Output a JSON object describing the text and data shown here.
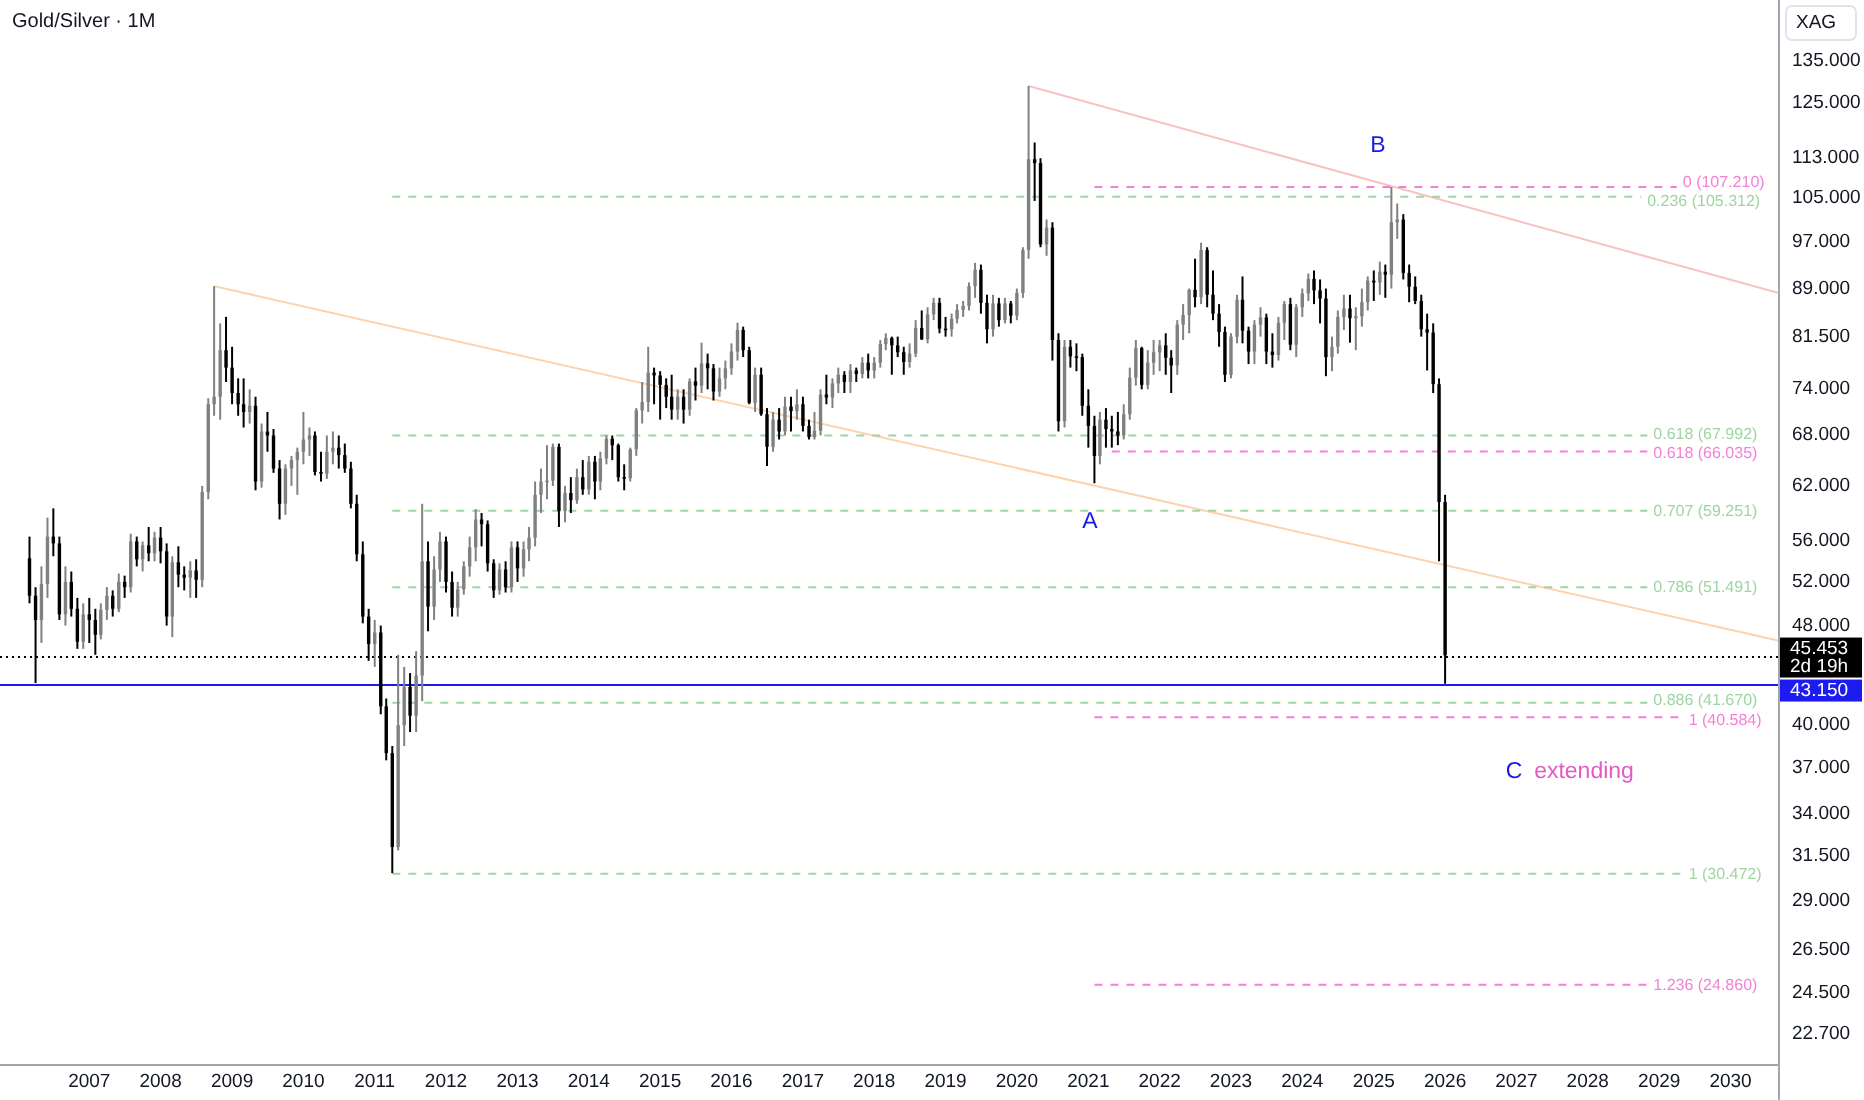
{
  "chart_data": {
    "type": "candlestick",
    "title": "Gold/Silver · 1M",
    "ylabel": "XAG",
    "log": true,
    "xlim": [
      "2005-10",
      "2030-09"
    ],
    "ylim": [
      21.5,
      151
    ],
    "xticks": [
      "2007",
      "2008",
      "2009",
      "2010",
      "2011",
      "2012",
      "2013",
      "2014",
      "2015",
      "2016",
      "2017",
      "2018",
      "2019",
      "2020",
      "2021",
      "2022",
      "2023",
      "2024",
      "2025",
      "2026",
      "2027",
      "2028",
      "2029",
      "2030"
    ],
    "yticks": [
      {
        "value": 135,
        "label": "135.000"
      },
      {
        "value": 125,
        "label": "125.000"
      },
      {
        "value": 113,
        "label": "113.000"
      },
      {
        "value": 105,
        "label": "105.000"
      },
      {
        "value": 97,
        "label": "97.000"
      },
      {
        "value": 89,
        "label": "89.000"
      },
      {
        "value": 81.5,
        "label": "81.500"
      },
      {
        "value": 74,
        "label": "74.000"
      },
      {
        "value": 68,
        "label": "68.000"
      },
      {
        "value": 62,
        "label": "62.000"
      },
      {
        "value": 56,
        "label": "56.000"
      },
      {
        "value": 52,
        "label": "52.000"
      },
      {
        "value": 48,
        "label": "48.000"
      },
      {
        "value": 40,
        "label": "40.000"
      },
      {
        "value": 37,
        "label": "37.000"
      },
      {
        "value": 34,
        "label": "34.000"
      },
      {
        "value": 31.5,
        "label": "31.500"
      },
      {
        "value": 29,
        "label": "29.000"
      },
      {
        "value": 26.5,
        "label": "26.500"
      },
      {
        "value": 24.5,
        "label": "24.500"
      },
      {
        "value": 22.7,
        "label": "22.700"
      }
    ],
    "x": [
      "2006-03",
      "2006-04",
      "2006-05",
      "2006-06",
      "2006-07",
      "2006-08",
      "2006-09",
      "2006-10",
      "2006-11",
      "2006-12",
      "2007-01",
      "2007-02",
      "2007-03",
      "2007-04",
      "2007-05",
      "2007-06",
      "2007-07",
      "2007-08",
      "2007-09",
      "2007-10",
      "2007-11",
      "2007-12",
      "2008-01",
      "2008-02",
      "2008-03",
      "2008-04",
      "2008-05",
      "2008-06",
      "2008-07",
      "2008-08",
      "2008-09",
      "2008-10",
      "2008-11",
      "2008-12",
      "2009-01",
      "2009-02",
      "2009-03",
      "2009-04",
      "2009-05",
      "2009-06",
      "2009-07",
      "2009-08",
      "2009-09",
      "2009-10",
      "2009-11",
      "2009-12",
      "2010-01",
      "2010-02",
      "2010-03",
      "2010-04",
      "2010-05",
      "2010-06",
      "2010-07",
      "2010-08",
      "2010-09",
      "2010-10",
      "2010-11",
      "2010-12",
      "2011-01",
      "2011-02",
      "2011-03",
      "2011-04",
      "2011-05",
      "2011-06",
      "2011-07",
      "2011-08",
      "2011-09",
      "2011-10",
      "2011-11",
      "2011-12",
      "2012-01",
      "2012-02",
      "2012-03",
      "2012-04",
      "2012-05",
      "2012-06",
      "2012-07",
      "2012-08",
      "2012-09",
      "2012-10",
      "2012-11",
      "2012-12",
      "2013-01",
      "2013-02",
      "2013-03",
      "2013-04",
      "2013-05",
      "2013-06",
      "2013-07",
      "2013-08",
      "2013-09",
      "2013-10",
      "2013-11",
      "2013-12",
      "2014-01",
      "2014-02",
      "2014-03",
      "2014-04",
      "2014-05",
      "2014-06",
      "2014-07",
      "2014-08",
      "2014-09",
      "2014-10",
      "2014-11",
      "2014-12",
      "2015-01",
      "2015-02",
      "2015-03",
      "2015-04",
      "2015-05",
      "2015-06",
      "2015-07",
      "2015-08",
      "2015-09",
      "2015-10",
      "2015-11",
      "2015-12",
      "2016-01",
      "2016-02",
      "2016-03",
      "2016-04",
      "2016-05",
      "2016-06",
      "2016-07",
      "2016-08",
      "2016-09",
      "2016-10",
      "2016-11",
      "2016-12",
      "2017-01",
      "2017-02",
      "2017-03",
      "2017-04",
      "2017-05",
      "2017-06",
      "2017-07",
      "2017-08",
      "2017-09",
      "2017-10",
      "2017-11",
      "2017-12",
      "2018-01",
      "2018-02",
      "2018-03",
      "2018-04",
      "2018-05",
      "2018-06",
      "2018-07",
      "2018-08",
      "2018-09",
      "2018-10",
      "2018-11",
      "2018-12",
      "2019-01",
      "2019-02",
      "2019-03",
      "2019-04",
      "2019-05",
      "2019-06",
      "2019-07",
      "2019-08",
      "2019-09",
      "2019-10",
      "2019-11",
      "2019-12",
      "2020-01",
      "2020-02",
      "2020-03",
      "2020-04",
      "2020-05",
      "2020-06",
      "2020-07",
      "2020-08",
      "2020-09",
      "2020-10",
      "2020-11",
      "2020-12",
      "2021-01",
      "2021-02",
      "2021-03",
      "2021-04",
      "2021-05",
      "2021-06",
      "2021-07",
      "2021-08",
      "2021-09",
      "2021-10",
      "2021-11",
      "2021-12",
      "2022-01",
      "2022-02",
      "2022-03",
      "2022-04",
      "2022-05",
      "2022-06",
      "2022-07",
      "2022-08",
      "2022-09",
      "2022-10",
      "2022-11",
      "2022-12",
      "2023-01",
      "2023-02",
      "2023-03",
      "2023-04",
      "2023-05",
      "2023-06",
      "2023-07",
      "2023-08",
      "2023-09",
      "2023-10",
      "2023-11",
      "2023-12",
      "2024-01",
      "2024-02",
      "2024-03",
      "2024-04",
      "2024-05",
      "2024-06",
      "2024-07",
      "2024-08",
      "2024-09",
      "2024-10",
      "2024-11",
      "2024-12",
      "2025-01",
      "2025-02",
      "2025-03",
      "2025-04",
      "2025-05",
      "2025-06",
      "2025-07",
      "2025-08",
      "2025-09",
      "2025-10",
      "2025-11",
      "2025-12",
      "2026-01"
    ],
    "ohlc": [
      [
        54.3,
        56.5,
        50.0,
        50.7
      ],
      [
        50.7,
        51.5,
        43.2,
        48.5
      ],
      [
        48.5,
        53.5,
        46.5,
        51.8
      ],
      [
        51.8,
        58.5,
        50.5,
        56.5
      ],
      [
        56.5,
        59.5,
        54.5,
        55.8
      ],
      [
        55.8,
        56.5,
        48.5,
        49.0
      ],
      [
        49.0,
        53.5,
        48.0,
        52.0
      ],
      [
        52.0,
        53.0,
        48.8,
        49.5
      ],
      [
        49.5,
        50.5,
        46.0,
        46.6
      ],
      [
        46.6,
        50.0,
        46.0,
        49.0
      ],
      [
        49.0,
        50.5,
        46.5,
        48.5
      ],
      [
        48.5,
        49.5,
        45.5,
        47.2
      ],
      [
        47.2,
        50.0,
        46.8,
        49.4
      ],
      [
        49.4,
        51.5,
        48.5,
        50.7
      ],
      [
        50.7,
        51.2,
        48.8,
        49.5
      ],
      [
        49.5,
        52.8,
        49.2,
        52.0
      ],
      [
        52.0,
        52.6,
        50.5,
        51.5
      ],
      [
        51.5,
        56.8,
        51.0,
        56.0
      ],
      [
        56.0,
        56.5,
        53.5,
        54.2
      ],
      [
        54.2,
        56.0,
        53.0,
        55.6
      ],
      [
        55.6,
        57.5,
        54.0,
        54.8
      ],
      [
        54.8,
        57.0,
        54.0,
        56.4
      ],
      [
        56.4,
        57.5,
        53.8,
        55.0
      ],
      [
        55.0,
        55.8,
        48.0,
        48.8
      ],
      [
        48.8,
        54.5,
        47.0,
        53.9
      ],
      [
        53.9,
        55.5,
        51.5,
        52.7
      ],
      [
        52.7,
        53.5,
        51.2,
        52.4
      ],
      [
        52.4,
        54.0,
        50.5,
        53.1
      ],
      [
        53.1,
        54.2,
        50.5,
        52.2
      ],
      [
        52.2,
        62.0,
        51.5,
        61.3
      ],
      [
        61.3,
        72.8,
        60.5,
        72.0
      ],
      [
        72.0,
        89.4,
        70.5,
        73.0
      ],
      [
        73.0,
        83.5,
        70.0,
        79.5
      ],
      [
        79.5,
        84.5,
        75.0,
        77.0
      ],
      [
        77.0,
        80.0,
        72.0,
        73.5
      ],
      [
        73.5,
        75.5,
        70.5,
        72.0
      ],
      [
        72.0,
        75.5,
        69.0,
        71.0
      ],
      [
        71.0,
        74.0,
        69.5,
        71.8
      ],
      [
        71.8,
        73.0,
        61.5,
        62.5
      ],
      [
        62.5,
        69.5,
        61.8,
        68.5
      ],
      [
        68.5,
        71.0,
        66.0,
        68.0
      ],
      [
        68.0,
        68.8,
        63.5,
        64.0
      ],
      [
        64.0,
        65.0,
        58.3,
        60.0
      ],
      [
        60.0,
        64.5,
        58.8,
        64.0
      ],
      [
        64.0,
        65.5,
        62.0,
        65.0
      ],
      [
        65.0,
        66.5,
        61.0,
        66.0
      ],
      [
        66.0,
        71.0,
        64.5,
        67.5
      ],
      [
        67.5,
        69.0,
        65.5,
        68.0
      ],
      [
        68.0,
        68.5,
        63.2,
        63.6
      ],
      [
        63.6,
        66.0,
        62.5,
        63.4
      ],
      [
        63.4,
        68.0,
        62.8,
        66.0
      ],
      [
        66.0,
        68.5,
        64.5,
        66.5
      ],
      [
        66.5,
        68.0,
        64.0,
        65.6
      ],
      [
        65.6,
        67.0,
        63.5,
        64.0
      ],
      [
        64.0,
        64.8,
        59.5,
        60.0
      ],
      [
        60.0,
        61.0,
        54.0,
        54.7
      ],
      [
        54.7,
        56.0,
        48.2,
        48.8
      ],
      [
        48.8,
        49.5,
        45.0,
        46.4
      ],
      [
        46.4,
        48.5,
        44.5,
        47.4
      ],
      [
        47.4,
        48.0,
        40.8,
        41.4
      ],
      [
        41.4,
        42.0,
        37.5,
        38.0
      ],
      [
        38.0,
        38.5,
        30.5,
        32.0
      ],
      [
        32.0,
        45.5,
        31.8,
        40.0
      ],
      [
        40.0,
        44.5,
        38.5,
        42.9
      ],
      [
        42.9,
        44.0,
        39.5,
        40.7
      ],
      [
        40.7,
        45.8,
        39.5,
        43.8
      ],
      [
        43.8,
        60.0,
        41.8,
        54.0
      ],
      [
        54.0,
        56.0,
        47.5,
        49.7
      ],
      [
        49.7,
        54.5,
        48.5,
        53.2
      ],
      [
        53.2,
        57.0,
        52.0,
        56.0
      ],
      [
        56.0,
        56.5,
        51.0,
        52.0
      ],
      [
        52.0,
        53.0,
        48.8,
        49.6
      ],
      [
        49.6,
        52.0,
        48.8,
        51.3
      ],
      [
        51.3,
        54.0,
        50.8,
        53.5
      ],
      [
        53.5,
        56.5,
        52.5,
        55.4
      ],
      [
        55.4,
        59.4,
        54.0,
        58.3
      ],
      [
        58.3,
        59.0,
        55.5,
        57.8
      ],
      [
        57.8,
        58.2,
        53.0,
        53.8
      ],
      [
        53.8,
        54.2,
        50.5,
        51.2
      ],
      [
        51.2,
        53.8,
        50.8,
        53.2
      ],
      [
        53.2,
        54.0,
        51.0,
        51.5
      ],
      [
        51.5,
        56.0,
        51.0,
        55.4
      ],
      [
        55.4,
        56.0,
        52.0,
        53.3
      ],
      [
        53.3,
        56.0,
        52.5,
        55.2
      ],
      [
        55.2,
        57.5,
        54.0,
        56.4
      ],
      [
        56.4,
        62.5,
        55.5,
        61.0
      ],
      [
        61.0,
        64.0,
        59.0,
        62.5
      ],
      [
        62.5,
        66.8,
        60.5,
        62.6
      ],
      [
        62.6,
        67.0,
        62.0,
        66.6
      ],
      [
        66.6,
        67.0,
        57.5,
        59.2
      ],
      [
        59.2,
        62.0,
        58.0,
        61.2
      ],
      [
        61.2,
        63.0,
        59.0,
        60.4
      ],
      [
        60.4,
        64.0,
        60.0,
        63.0
      ],
      [
        63.0,
        65.0,
        61.0,
        61.6
      ],
      [
        61.6,
        65.5,
        61.0,
        64.8
      ],
      [
        64.8,
        65.5,
        60.5,
        62.5
      ],
      [
        62.5,
        66.0,
        61.5,
        65.2
      ],
      [
        65.2,
        68.0,
        64.5,
        67.6
      ],
      [
        67.6,
        68.0,
        65.0,
        66.8
      ],
      [
        66.8,
        67.0,
        62.5,
        63.0
      ],
      [
        63.0,
        64.5,
        61.5,
        62.9
      ],
      [
        62.9,
        66.5,
        62.5,
        66.3
      ],
      [
        66.3,
        71.5,
        65.5,
        71.2
      ],
      [
        71.2,
        75.0,
        69.5,
        72.3
      ],
      [
        72.3,
        80.0,
        71.0,
        76.3
      ],
      [
        76.3,
        77.0,
        72.0,
        75.9
      ],
      [
        75.9,
        76.5,
        70.0,
        74.6
      ],
      [
        74.6,
        75.5,
        71.5,
        73.0
      ],
      [
        73.0,
        76.0,
        70.0,
        71.3
      ],
      [
        71.3,
        74.0,
        70.0,
        73.0
      ],
      [
        73.0,
        74.0,
        69.5,
        71.3
      ],
      [
        71.3,
        75.5,
        70.5,
        75.1
      ],
      [
        75.1,
        77.0,
        72.5,
        74.5
      ],
      [
        74.5,
        80.6,
        73.5,
        77.6
      ],
      [
        77.6,
        79.0,
        74.0,
        76.9
      ],
      [
        76.9,
        77.5,
        72.5,
        73.7
      ],
      [
        73.7,
        77.0,
        73.0,
        75.5
      ],
      [
        75.5,
        78.0,
        74.0,
        76.9
      ],
      [
        76.9,
        80.5,
        76.0,
        79.3
      ],
      [
        79.3,
        83.6,
        78.0,
        82.5
      ],
      [
        82.5,
        83.0,
        78.5,
        79.5
      ],
      [
        79.5,
        80.0,
        72.0,
        72.2
      ],
      [
        72.2,
        77.0,
        71.0,
        76.0
      ],
      [
        76.0,
        77.0,
        70.5,
        70.7
      ],
      [
        70.7,
        71.5,
        64.3,
        66.6
      ],
      [
        66.6,
        71.0,
        66.0,
        70.0
      ],
      [
        70.0,
        71.5,
        67.5,
        68.5
      ],
      [
        68.5,
        73.0,
        68.0,
        71.7
      ],
      [
        71.7,
        73.0,
        68.5,
        71.1
      ],
      [
        71.1,
        74.0,
        70.0,
        72.0
      ],
      [
        72.0,
        73.0,
        68.5,
        69.2
      ],
      [
        69.2,
        70.0,
        67.5,
        67.8
      ],
      [
        67.8,
        71.0,
        67.5,
        68.6
      ],
      [
        68.6,
        74.0,
        68.0,
        73.3
      ],
      [
        73.3,
        76.0,
        72.0,
        72.9
      ],
      [
        72.9,
        75.5,
        71.5,
        74.8
      ],
      [
        74.8,
        77.0,
        73.5,
        76.0
      ],
      [
        76.0,
        76.5,
        73.5,
        75.0
      ],
      [
        75.0,
        77.5,
        73.5,
        76.6
      ],
      [
        76.6,
        77.0,
        75.0,
        76.1
      ],
      [
        76.1,
        78.5,
        75.5,
        77.7
      ],
      [
        77.7,
        79.0,
        75.5,
        76.6
      ],
      [
        76.6,
        78.5,
        75.5,
        77.7
      ],
      [
        77.7,
        81.0,
        77.0,
        80.4
      ],
      [
        80.4,
        82.0,
        79.5,
        81.3
      ],
      [
        81.3,
        81.5,
        76.0,
        80.2
      ],
      [
        80.2,
        81.5,
        78.5,
        79.2
      ],
      [
        79.2,
        80.0,
        76.0,
        77.8
      ],
      [
        77.8,
        80.5,
        77.0,
        79.0
      ],
      [
        79.0,
        84.0,
        78.5,
        82.8
      ],
      [
        82.8,
        85.5,
        81.0,
        81.1
      ],
      [
        81.1,
        86.0,
        80.5,
        84.9
      ],
      [
        84.9,
        87.5,
        84.0,
        86.7
      ],
      [
        86.7,
        87.5,
        82.0,
        82.7
      ],
      [
        82.7,
        84.5,
        81.5,
        82.6
      ],
      [
        82.6,
        85.0,
        81.5,
        84.2
      ],
      [
        84.2,
        86.5,
        83.5,
        85.6
      ],
      [
        85.6,
        87.0,
        84.5,
        86.2
      ],
      [
        86.2,
        90.0,
        85.5,
        89.4
      ],
      [
        89.4,
        93.3,
        87.5,
        92.1
      ],
      [
        92.1,
        93.0,
        85.0,
        86.7
      ],
      [
        86.7,
        88.0,
        80.5,
        82.6
      ],
      [
        82.6,
        88.0,
        81.5,
        86.6
      ],
      [
        86.6,
        87.5,
        83.0,
        84.0
      ],
      [
        84.0,
        87.5,
        83.5,
        86.6
      ],
      [
        86.6,
        87.0,
        83.5,
        84.7
      ],
      [
        84.7,
        89.0,
        84.0,
        88.3
      ],
      [
        88.3,
        96.0,
        87.5,
        95.5
      ],
      [
        95.5,
        129.0,
        94.0,
        112.8
      ],
      [
        112.8,
        116.3,
        104.5,
        112.0
      ],
      [
        112.0,
        113.0,
        96.0,
        96.5
      ],
      [
        96.5,
        101.0,
        94.5,
        99.5
      ],
      [
        99.5,
        100.5,
        78.0,
        81.0
      ],
      [
        81.0,
        82.0,
        68.5,
        69.8
      ],
      [
        69.8,
        81.0,
        69.0,
        80.0
      ],
      [
        80.0,
        81.0,
        77.0,
        78.6
      ],
      [
        78.6,
        80.5,
        76.5,
        78.5
      ],
      [
        78.5,
        79.0,
        70.5,
        71.8
      ],
      [
        71.8,
        74.0,
        66.5,
        69.2
      ],
      [
        69.2,
        70.5,
        62.3,
        65.5
      ],
      [
        65.5,
        71.0,
        64.5,
        70.0
      ],
      [
        70.0,
        71.5,
        66.5,
        68.8
      ],
      [
        68.8,
        70.5,
        66.5,
        68.5
      ],
      [
        68.5,
        71.0,
        66.8,
        68.0
      ],
      [
        68.0,
        72.0,
        67.5,
        70.7
      ],
      [
        70.7,
        77.0,
        70.0,
        75.6
      ],
      [
        75.6,
        81.0,
        74.5,
        79.8
      ],
      [
        79.8,
        80.0,
        74.0,
        74.6
      ],
      [
        74.6,
        79.5,
        74.0,
        77.7
      ],
      [
        77.7,
        81.0,
        76.0,
        79.2
      ],
      [
        79.2,
        81.0,
        76.5,
        80.2
      ],
      [
        80.2,
        82.0,
        76.0,
        78.4
      ],
      [
        78.4,
        79.5,
        73.5,
        77.3
      ],
      [
        77.3,
        84.0,
        76.0,
        83.3
      ],
      [
        83.3,
        86.5,
        81.0,
        84.8
      ],
      [
        84.8,
        89.0,
        82.0,
        88.8
      ],
      [
        88.8,
        94.0,
        86.0,
        87.6
      ],
      [
        87.6,
        96.8,
        86.5,
        95.5
      ],
      [
        95.5,
        96.0,
        86.0,
        88.0
      ],
      [
        88.0,
        92.0,
        84.0,
        85.0
      ],
      [
        85.0,
        86.5,
        80.0,
        82.2
      ],
      [
        82.2,
        83.0,
        75.0,
        76.0
      ],
      [
        76.0,
        82.0,
        75.5,
        81.5
      ],
      [
        81.5,
        88.0,
        80.5,
        87.2
      ],
      [
        87.2,
        91.0,
        80.5,
        82.4
      ],
      [
        82.4,
        83.0,
        77.5,
        79.3
      ],
      [
        79.3,
        84.0,
        77.5,
        83.3
      ],
      [
        83.3,
        86.0,
        81.5,
        84.4
      ],
      [
        84.4,
        85.0,
        77.5,
        79.3
      ],
      [
        79.3,
        82.0,
        77.0,
        78.8
      ],
      [
        78.8,
        84.5,
        78.0,
        83.6
      ],
      [
        83.6,
        87.0,
        81.0,
        86.5
      ],
      [
        86.5,
        87.5,
        79.5,
        80.3
      ],
      [
        80.3,
        86.5,
        78.5,
        86.0
      ],
      [
        86.0,
        89.0,
        84.5,
        88.2
      ],
      [
        88.2,
        91.5,
        87.0,
        90.6
      ],
      [
        90.6,
        92.0,
        86.5,
        88.7
      ],
      [
        88.7,
        90.5,
        83.5,
        87.4
      ],
      [
        87.4,
        89.0,
        75.8,
        78.5
      ],
      [
        78.5,
        81.5,
        76.5,
        80.0
      ],
      [
        80.0,
        85.5,
        79.0,
        84.5
      ],
      [
        84.5,
        88.0,
        82.5,
        85.8
      ],
      [
        85.8,
        88.0,
        80.6,
        84.3
      ],
      [
        84.3,
        86.0,
        79.5,
        84.6
      ],
      [
        84.6,
        89.0,
        83.0,
        86.8
      ],
      [
        86.8,
        91.0,
        85.5,
        90.3
      ],
      [
        90.3,
        92.0,
        87.0,
        90.0
      ],
      [
        90.0,
        93.5,
        88.0,
        91.8
      ],
      [
        91.8,
        93.0,
        87.5,
        91.3
      ],
      [
        91.3,
        107.2,
        89.0,
        100.5
      ],
      [
        100.5,
        104.0,
        97.5,
        101.0
      ],
      [
        101.0,
        102.0,
        90.5,
        91.6
      ],
      [
        91.6,
        93.0,
        86.8,
        89.3
      ],
      [
        89.3,
        91.0,
        86.5,
        87.0
      ],
      [
        87.0,
        88.0,
        81.5,
        82.6
      ],
      [
        82.6,
        85.0,
        76.6,
        82.1
      ],
      [
        82.1,
        83.5,
        73.5,
        74.7
      ],
      [
        74.7,
        75.5,
        54.0,
        60.2
      ],
      [
        60.2,
        61.0,
        43.15,
        45.453
      ]
    ],
    "colors": [
      "#000000",
      "#000000",
      "#808080",
      "#808080",
      "#000000",
      "#000000",
      "#808080",
      "#000000",
      "#000000",
      "#808080",
      "#000000",
      "#000000",
      "#808080",
      "#808080",
      "#000000",
      "#808080",
      "#000000",
      "#808080",
      "#000000",
      "#808080",
      "#000000",
      "#808080",
      "#000000",
      "#000000",
      "#808080",
      "#000000",
      "#000000",
      "#808080",
      "#000000",
      "#808080",
      "#808080",
      "#808080",
      "#808080",
      "#000000",
      "#000000",
      "#000000",
      "#000000",
      "#808080",
      "#000000",
      "#808080",
      "#000000",
      "#000000",
      "#000000",
      "#808080",
      "#808080",
      "#808080",
      "#808080",
      "#808080",
      "#000000",
      "#000000",
      "#808080",
      "#808080",
      "#000000",
      "#000000",
      "#000000",
      "#000000",
      "#000000",
      "#000000",
      "#808080",
      "#000000",
      "#000000",
      "#000000",
      "#808080",
      "#808080",
      "#000000",
      "#808080",
      "#808080",
      "#000000",
      "#808080",
      "#808080",
      "#000000",
      "#000000",
      "#808080",
      "#808080",
      "#808080",
      "#808080",
      "#000000",
      "#000000",
      "#000000",
      "#808080",
      "#000000",
      "#808080",
      "#000000",
      "#808080",
      "#808080",
      "#808080",
      "#808080",
      "#808080",
      "#808080",
      "#000000",
      "#808080",
      "#000000",
      "#808080",
      "#000000",
      "#808080",
      "#000000",
      "#808080",
      "#808080",
      "#000000",
      "#000000",
      "#000000",
      "#808080",
      "#808080",
      "#808080",
      "#808080",
      "#000000",
      "#000000",
      "#000000",
      "#000000",
      "#808080",
      "#000000",
      "#808080",
      "#000000",
      "#808080",
      "#000000",
      "#000000",
      "#808080",
      "#808080",
      "#808080",
      "#808080",
      "#000000",
      "#000000",
      "#808080",
      "#000000",
      "#000000",
      "#808080",
      "#000000",
      "#808080",
      "#000000",
      "#808080",
      "#000000",
      "#000000",
      "#808080",
      "#808080",
      "#000000",
      "#808080",
      "#808080",
      "#000000",
      "#808080",
      "#000000",
      "#808080",
      "#000000",
      "#808080",
      "#808080",
      "#808080",
      "#000000",
      "#000000",
      "#000000",
      "#808080",
      "#808080",
      "#000000",
      "#808080",
      "#808080",
      "#000000",
      "#000000",
      "#808080",
      "#808080",
      "#808080",
      "#808080",
      "#808080",
      "#000000",
      "#000000",
      "#808080",
      "#000000",
      "#808080",
      "#000000",
      "#808080",
      "#808080",
      "#808080",
      "#000000",
      "#000000",
      "#808080",
      "#000000",
      "#000000",
      "#808080",
      "#000000",
      "#000000",
      "#000000",
      "#000000",
      "#000000",
      "#808080",
      "#000000",
      "#000000",
      "#000000",
      "#808080",
      "#808080",
      "#808080",
      "#000000",
      "#808080",
      "#808080",
      "#808080",
      "#000000",
      "#000000",
      "#808080",
      "#808080",
      "#808080",
      "#000000",
      "#808080",
      "#000000",
      "#000000",
      "#000000",
      "#000000",
      "#808080",
      "#808080",
      "#000000",
      "#000000",
      "#808080",
      "#808080",
      "#000000",
      "#000000",
      "#808080",
      "#808080",
      "#000000",
      "#808080",
      "#808080",
      "#808080",
      "#000000",
      "#000000",
      "#000000",
      "#808080",
      "#808080",
      "#808080",
      "#000000",
      "#808080",
      "#808080",
      "#808080",
      "#000000",
      "#808080",
      "#000000",
      "#808080",
      "#808080",
      "#000000",
      "#000000",
      "#000000",
      "#000000",
      "#000000",
      "#000000",
      "#000000",
      "#000000"
    ],
    "series": [
      {
        "type": "line",
        "color": "#fcd3ad",
        "line_style": "solid",
        "x": [
          "2008-10",
          "2030-09"
        ],
        "values": [
          89.4,
          46.7
        ]
      },
      {
        "type": "line",
        "color": "#f7c2c2",
        "line_style": "solid",
        "x": [
          "2020-03",
          "2030-09"
        ],
        "values": [
          129.0,
          88.3
        ]
      },
      {
        "type": "line",
        "name": "0 (107.210)",
        "color": "#f57fd6",
        "line_style": "dashed",
        "x": [
          "2021-02",
          "2029-04"
        ],
        "values": [
          107.21,
          107.21
        ]
      },
      {
        "type": "line",
        "name": "0.236 (105.312)",
        "color": "#9fd4a3",
        "line_style": "dashed",
        "x": [
          "2011-04",
          "2028-10"
        ],
        "values": [
          105.312,
          105.312
        ]
      },
      {
        "type": "line",
        "name": "0.618 (67.992)",
        "color": "#9fd4a3",
        "line_style": "dashed",
        "x": [
          "2011-04",
          "2028-11"
        ],
        "values": [
          67.992,
          67.992
        ]
      },
      {
        "type": "line",
        "name": "0.618 (66.035)",
        "color": "#f57fd6",
        "line_style": "dashed",
        "x": [
          "2021-05",
          "2028-11"
        ],
        "values": [
          66.035,
          66.035
        ]
      },
      {
        "type": "line",
        "name": "0.707 (59.251)",
        "color": "#9fd4a3",
        "line_style": "dashed",
        "x": [
          "2011-04",
          "2028-11"
        ],
        "values": [
          59.251,
          59.251
        ]
      },
      {
        "type": "line",
        "name": "0.786 (51.491)",
        "color": "#9fd4a3",
        "line_style": "dashed",
        "x": [
          "2011-04",
          "2028-11"
        ],
        "values": [
          51.491,
          51.491
        ]
      },
      {
        "type": "line",
        "name": "0.886 (41.670)",
        "color": "#9fd4a3",
        "line_style": "dashed",
        "x": [
          "2011-04",
          "2028-11"
        ],
        "values": [
          41.67,
          41.67
        ]
      },
      {
        "type": "line",
        "name": "1 (40.584)",
        "color": "#f57fd6",
        "line_style": "dashed",
        "x": [
          "2021-02",
          "2029-05"
        ],
        "values": [
          40.584,
          40.584
        ]
      },
      {
        "type": "line",
        "name": "1 (30.472)",
        "color": "#9fd4a3",
        "line_style": "dashed",
        "x": [
          "2011-04",
          "2029-05"
        ],
        "values": [
          30.472,
          30.472
        ]
      },
      {
        "type": "line",
        "name": "1.236 (24.860)",
        "color": "#f57fd6",
        "line_style": "dashed",
        "x": [
          "2021-02",
          "2028-11"
        ],
        "values": [
          24.86,
          24.86
        ]
      }
    ],
    "ref_lines": [
      {
        "axis": "y",
        "value": 45.453,
        "label": "45.453",
        "color": "#000000",
        "line_style": "dotted"
      },
      {
        "axis": "y",
        "value": 43.15,
        "label": "43.150",
        "color": "#1c1cf0",
        "line_style": "solid"
      }
    ],
    "annotations": [
      "A",
      "B",
      "C",
      "extending",
      "2d 19h"
    ]
  }
}
